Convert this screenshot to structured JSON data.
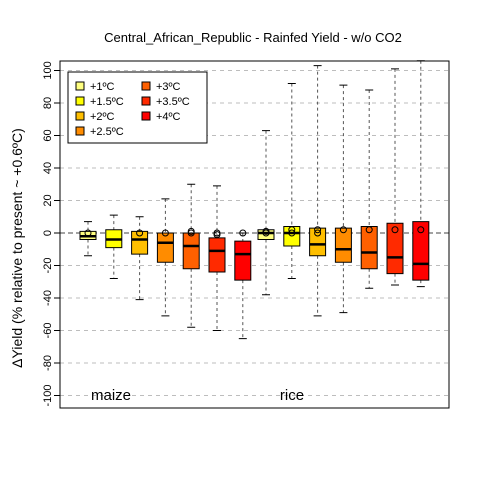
{
  "chart_data": {
    "type": "box",
    "title": "Central_African_Republic - Rainfed Yield - w/o CO2",
    "ylabel": "ΔYield (% relative to present ~ +0.6ºC)",
    "xlabel": "",
    "ylim": [
      -110,
      105
    ],
    "yticks": [
      100,
      80,
      60,
      40,
      20,
      0,
      -20,
      -40,
      -60,
      -80,
      -100
    ],
    "grid": "horizontal dashed",
    "legend_position": "top-left",
    "legend": [
      {
        "label": "+1ºC",
        "color": "#ffff80"
      },
      {
        "label": "+1.5ºC",
        "color": "#ffff00"
      },
      {
        "label": "+2ºC",
        "color": "#ffbf00"
      },
      {
        "label": "+2.5ºC",
        "color": "#ff8c00"
      },
      {
        "label": "+3ºC",
        "color": "#ff6000"
      },
      {
        "label": "+3.5ºC",
        "color": "#ff2a00"
      },
      {
        "label": "+4ºC",
        "color": "#ff0000"
      }
    ],
    "groups": [
      {
        "label": "maize",
        "boxes": [
          {
            "level": "+1ºC",
            "whisker_low": -14,
            "q1": -4,
            "median": -2,
            "q3": 1,
            "whisker_high": 7,
            "outliers": [
              0
            ]
          },
          {
            "level": "+1.5ºC",
            "whisker_low": -28,
            "q1": -9,
            "median": -4,
            "q3": 2,
            "whisker_high": 11,
            "outliers": []
          },
          {
            "level": "+2ºC",
            "whisker_low": -41,
            "q1": -13,
            "median": -4,
            "q3": 1,
            "whisker_high": 10,
            "outliers": [
              0
            ]
          },
          {
            "level": "+2.5ºC",
            "whisker_low": -51,
            "q1": -18,
            "median": -6,
            "q3": 0,
            "whisker_high": 21,
            "outliers": [
              0
            ]
          },
          {
            "level": "+3ºC",
            "whisker_low": -58,
            "q1": -22,
            "median": -8,
            "q3": 0,
            "whisker_high": 30,
            "outliers": [
              0,
              1
            ]
          },
          {
            "level": "+3.5ºC",
            "whisker_low": -60,
            "q1": -24,
            "median": -11,
            "q3": -3,
            "whisker_high": 29,
            "outliers": [
              -1,
              0
            ]
          },
          {
            "level": "+4ºC",
            "whisker_low": -65,
            "q1": -29,
            "median": -13,
            "q3": -5,
            "whisker_high": 0,
            "outliers": [
              0
            ]
          }
        ]
      },
      {
        "label": "rice",
        "boxes": [
          {
            "level": "+1ºC",
            "whisker_low": -38,
            "q1": -4,
            "median": 0,
            "q3": 2,
            "whisker_high": 63,
            "outliers": [
              0,
              1
            ]
          },
          {
            "level": "+1.5ºC",
            "whisker_low": -28,
            "q1": -8,
            "median": 0,
            "q3": 4,
            "whisker_high": 92,
            "outliers": [
              0,
              2
            ]
          },
          {
            "level": "+2ºC",
            "whisker_low": -51,
            "q1": -14,
            "median": -7,
            "q3": 3,
            "whisker_high": 103,
            "outliers": [
              0,
              2
            ]
          },
          {
            "level": "+2.5ºC",
            "whisker_low": -49,
            "q1": -18,
            "median": -10,
            "q3": 3,
            "whisker_high": 91,
            "outliers": [
              2
            ]
          },
          {
            "level": "+3ºC",
            "whisker_low": -34,
            "q1": -22,
            "median": -12,
            "q3": 4,
            "whisker_high": 88,
            "outliers": [
              2
            ]
          },
          {
            "level": "+3.5ºC",
            "whisker_low": -32,
            "q1": -25,
            "median": -15,
            "q3": 6,
            "whisker_high": 101,
            "outliers": [
              2
            ]
          },
          {
            "level": "+4ºC",
            "whisker_low": -33,
            "q1": -29,
            "median": -19,
            "q3": 7,
            "whisker_high": 106,
            "outliers": [
              2
            ]
          }
        ]
      }
    ]
  }
}
